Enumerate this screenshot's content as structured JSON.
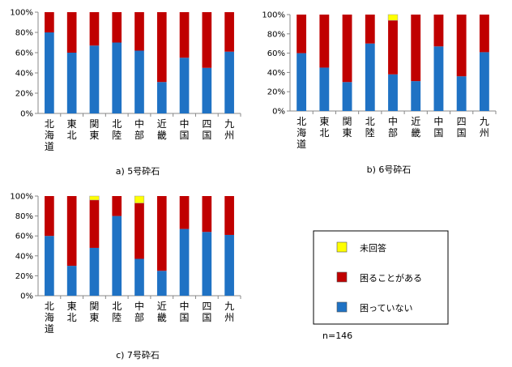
{
  "chart_data": [
    {
      "type": "bar",
      "stacked": true,
      "caption": "a) 5号砕石",
      "categories": [
        "北海道",
        "東北",
        "関東",
        "北陸",
        "中部",
        "近畿",
        "中国",
        "四国",
        "九州"
      ],
      "ylim": [
        0,
        100
      ],
      "yticks": [
        "0%",
        "20%",
        "40%",
        "60%",
        "80%",
        "100%"
      ],
      "series": [
        {
          "name": "困っていない",
          "color": "#1f72c4",
          "values": [
            80,
            60,
            67,
            70,
            62,
            31,
            55,
            45,
            61
          ]
        },
        {
          "name": "困ることがある",
          "color": "#c00000",
          "values": [
            20,
            40,
            33,
            30,
            38,
            69,
            45,
            55,
            39
          ]
        },
        {
          "name": "未回答",
          "color": "#ffff00",
          "values": [
            0,
            0,
            0,
            0,
            0,
            0,
            0,
            0,
            0
          ]
        }
      ]
    },
    {
      "type": "bar",
      "stacked": true,
      "caption": "b) 6号砕石",
      "categories": [
        "北海道",
        "東北",
        "関東",
        "北陸",
        "中部",
        "近畿",
        "中国",
        "四国",
        "九州"
      ],
      "ylim": [
        0,
        100
      ],
      "yticks": [
        "0%",
        "20%",
        "40%",
        "60%",
        "80%",
        "100%"
      ],
      "series": [
        {
          "name": "困っていない",
          "color": "#1f72c4",
          "values": [
            60,
            45,
            30,
            70,
            38,
            31,
            67,
            36,
            61
          ]
        },
        {
          "name": "困ることがある",
          "color": "#c00000",
          "values": [
            40,
            55,
            70,
            30,
            56,
            69,
            33,
            64,
            39
          ]
        },
        {
          "name": "未回答",
          "color": "#ffff00",
          "values": [
            0,
            0,
            0,
            0,
            6,
            0,
            0,
            0,
            0
          ]
        }
      ]
    },
    {
      "type": "bar",
      "stacked": true,
      "caption": "c) 7号砕石",
      "categories": [
        "北海道",
        "東北",
        "関東",
        "北陸",
        "中部",
        "近畿",
        "中国",
        "四国",
        "九州"
      ],
      "ylim": [
        0,
        100
      ],
      "yticks": [
        "0%",
        "20%",
        "40%",
        "60%",
        "80%",
        "100%"
      ],
      "series": [
        {
          "name": "困っていない",
          "color": "#1f72c4",
          "values": [
            60,
            30,
            48,
            80,
            37,
            25,
            67,
            64,
            61
          ]
        },
        {
          "name": "困ることがある",
          "color": "#c00000",
          "values": [
            40,
            70,
            48,
            20,
            56,
            75,
            33,
            36,
            39
          ]
        },
        {
          "name": "未回答",
          "color": "#ffff00",
          "values": [
            0,
            0,
            4,
            0,
            7,
            0,
            0,
            0,
            0
          ]
        }
      ]
    }
  ],
  "legend": {
    "items": [
      {
        "label": "未回答",
        "color": "#ffff00"
      },
      {
        "label": "困ることがある",
        "color": "#c00000"
      },
      {
        "label": "困っていない",
        "color": "#1f72c4"
      }
    ]
  },
  "note": "n=146"
}
